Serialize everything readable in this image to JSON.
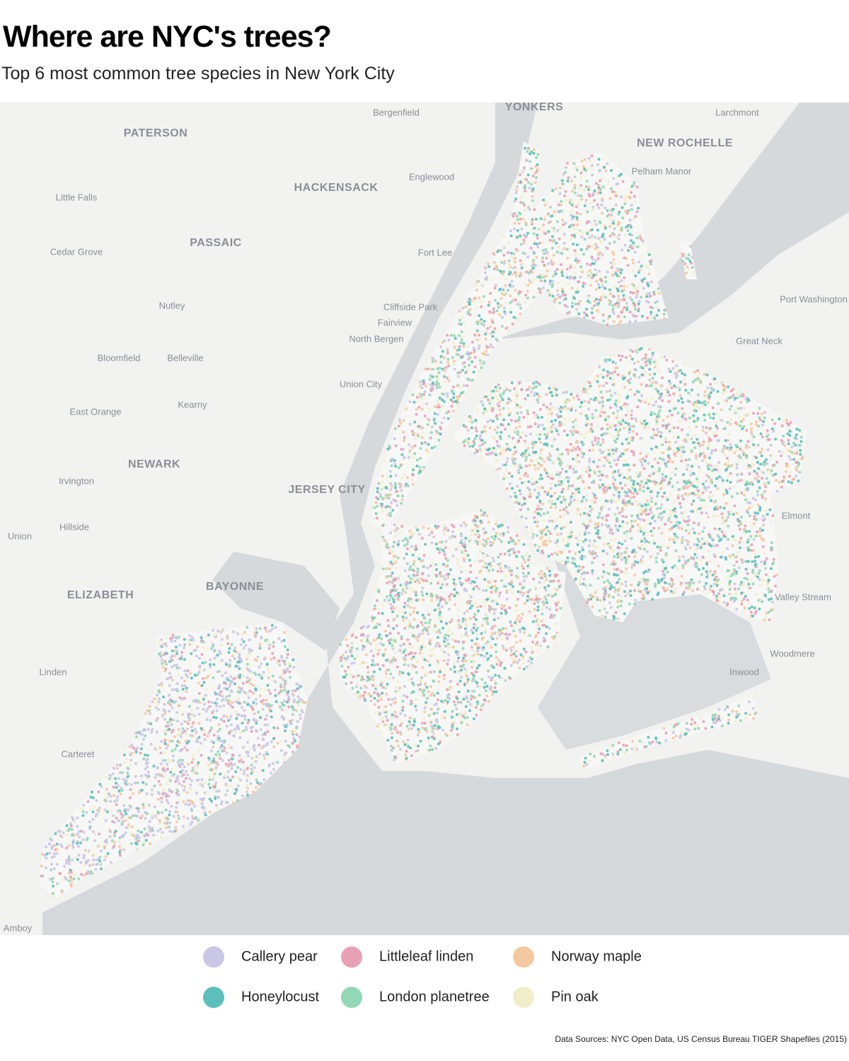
{
  "header": {
    "title": "Where are NYC's trees?",
    "subtitle": "Top 6 most common tree species in New York City"
  },
  "map": {
    "place_labels": [
      "Bergenfield",
      "YONKERS",
      "Larchmont",
      "PATERSON",
      "NEW ROCHELLE",
      "Englewood",
      "Pelham Manor",
      "HACKENSACK",
      "Little Falls",
      "PASSAIC",
      "Cedar Grove",
      "Fort Lee",
      "Port Washington",
      "Nutley",
      "Cliffside Park",
      "Fairview",
      "North Bergen",
      "Great Neck",
      "Bloomfield",
      "Belleville",
      "Union City",
      "Kearny",
      "East Orange",
      "NEWARK",
      "Irvington",
      "JERSEY CITY",
      "Hillside",
      "Elmont",
      "Union",
      "ELIZABETH",
      "BAYONNE",
      "Valley Stream",
      "Woodmere",
      "Linden",
      "Inwood",
      "Carteret",
      "Amboy"
    ]
  },
  "legend": {
    "items": [
      {
        "name": "Callery pear",
        "color": "#c9c6e6"
      },
      {
        "name": "Honeylocust",
        "color": "#5cbfbb"
      },
      {
        "name": "Littleleaf linden",
        "color": "#e7a1b6"
      },
      {
        "name": "London planetree",
        "color": "#92d7b6"
      },
      {
        "name": "Norway maple",
        "color": "#f4c89f"
      },
      {
        "name": "Pin oak",
        "color": "#f0eec9"
      }
    ]
  },
  "footer": {
    "source": "Data Sources: NYC Open Data, US Census Bureau TIGER Shapefiles (2015)"
  }
}
